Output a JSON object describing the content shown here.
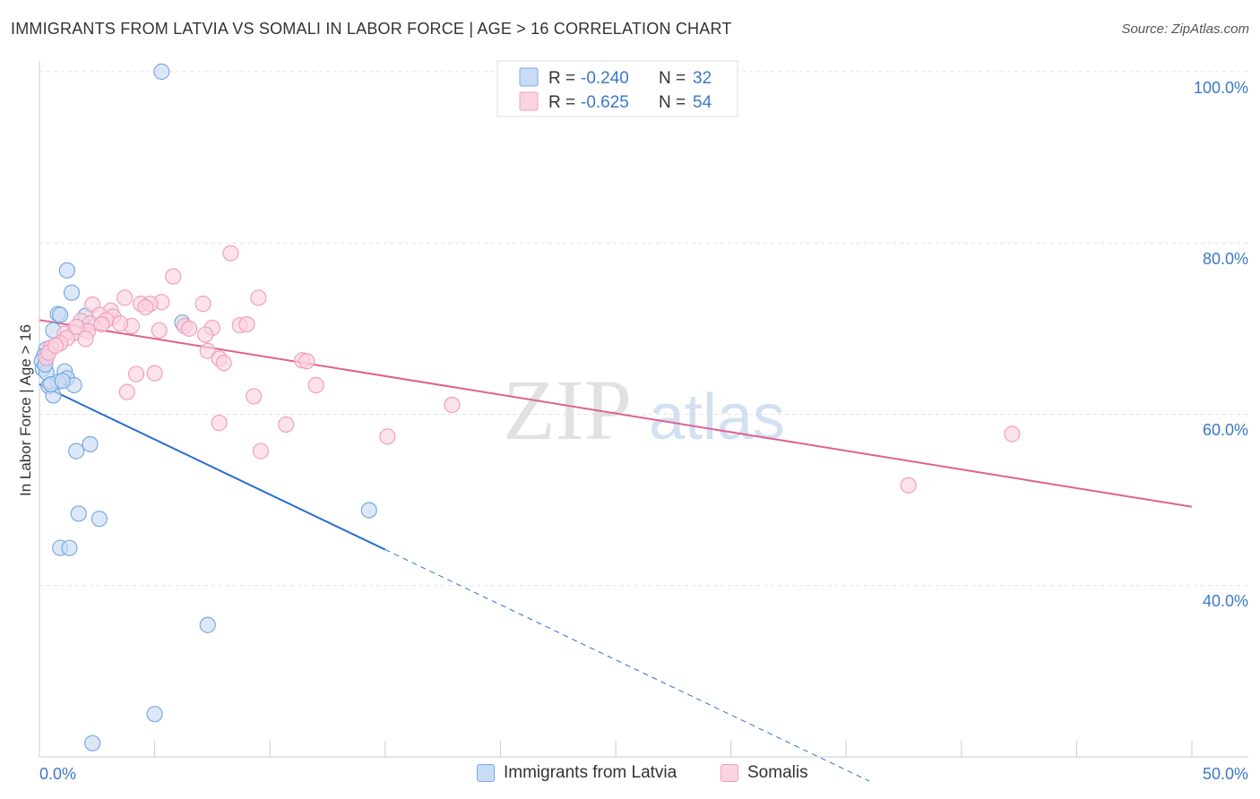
{
  "title": "IMMIGRANTS FROM LATVIA VS SOMALI IN LABOR FORCE | AGE > 16 CORRELATION CHART",
  "source": "Source: ZipAtlas.com",
  "watermark": {
    "zip": "ZIP",
    "atlas": "atlas"
  },
  "legend": {
    "r_label": "R = ",
    "n_label": "N = ",
    "rows": [
      {
        "r": "-0.240",
        "n": "32"
      },
      {
        "r": "-0.625",
        "n": "54"
      }
    ]
  },
  "chart_data": {
    "type": "scatter",
    "xlabel": "",
    "ylabel": "In Labor Force | Age > 16",
    "xlim": [
      0,
      50
    ],
    "ylim": [
      20,
      100
    ],
    "x_tick_labels": [
      "0.0%",
      "50.0%"
    ],
    "y_tick_labels": [
      "100.0%",
      "80.0%",
      "60.0%",
      "40.0%"
    ],
    "y_ticks": [
      100,
      80,
      60,
      40
    ],
    "grid": true,
    "legend_position": "top-center",
    "series": [
      {
        "name": "Immigrants from Latvia",
        "color": "#7aaae0",
        "fill": "#c9dcf5",
        "line_color": "#2a6fd0",
        "r": -0.24,
        "n": 32,
        "trend": {
          "x0": 0,
          "y0": 63.5,
          "x1": 15,
          "y1": 44.2,
          "dash_to_x": 36
        },
        "points": [
          [
            5.3,
            100.0
          ],
          [
            1.2,
            76.8
          ],
          [
            1.4,
            74.2
          ],
          [
            0.8,
            71.7
          ],
          [
            0.9,
            71.6
          ],
          [
            2.0,
            71.5
          ],
          [
            6.2,
            70.7
          ],
          [
            0.6,
            69.8
          ],
          [
            0.3,
            67.6
          ],
          [
            0.2,
            66.8
          ],
          [
            0.1,
            66.2
          ],
          [
            0.15,
            65.3
          ],
          [
            0.3,
            64.9
          ],
          [
            1.1,
            65.0
          ],
          [
            1.2,
            64.2
          ],
          [
            0.8,
            63.8
          ],
          [
            0.4,
            63.3
          ],
          [
            1.5,
            63.4
          ],
          [
            0.6,
            62.2
          ],
          [
            0.5,
            63.5
          ],
          [
            2.2,
            56.5
          ],
          [
            1.6,
            55.7
          ],
          [
            1.7,
            48.4
          ],
          [
            2.6,
            47.8
          ],
          [
            14.3,
            48.8
          ],
          [
            0.9,
            44.4
          ],
          [
            1.3,
            44.4
          ],
          [
            7.3,
            35.4
          ],
          [
            5.0,
            25.0
          ],
          [
            2.3,
            21.6
          ],
          [
            0.25,
            65.8
          ],
          [
            1.0,
            63.9
          ]
        ]
      },
      {
        "name": "Somalis",
        "color": "#f0a0bc",
        "fill": "#fbd3e1",
        "line_color": "#e06090",
        "r": -0.625,
        "n": 54,
        "trend": {
          "x0": 0,
          "y0": 71.0,
          "x1": 50,
          "y1": 49.2
        },
        "points": [
          [
            8.3,
            78.8
          ],
          [
            5.8,
            76.1
          ],
          [
            3.7,
            73.6
          ],
          [
            9.5,
            73.6
          ],
          [
            5.3,
            73.1
          ],
          [
            4.4,
            72.9
          ],
          [
            4.8,
            72.9
          ],
          [
            7.1,
            72.9
          ],
          [
            2.3,
            72.8
          ],
          [
            3.1,
            72.1
          ],
          [
            2.6,
            71.6
          ],
          [
            3.2,
            71.4
          ],
          [
            2.9,
            71.0
          ],
          [
            1.8,
            70.9
          ],
          [
            2.2,
            70.6
          ],
          [
            2.7,
            70.5
          ],
          [
            4.0,
            70.3
          ],
          [
            6.3,
            70.3
          ],
          [
            7.5,
            70.1
          ],
          [
            8.7,
            70.4
          ],
          [
            9.0,
            70.5
          ],
          [
            5.2,
            69.8
          ],
          [
            2.1,
            69.7
          ],
          [
            1.5,
            69.5
          ],
          [
            1.1,
            69.4
          ],
          [
            7.2,
            69.3
          ],
          [
            1.2,
            68.9
          ],
          [
            2.0,
            68.8
          ],
          [
            0.9,
            68.3
          ],
          [
            0.5,
            67.8
          ],
          [
            7.3,
            67.4
          ],
          [
            7.8,
            66.5
          ],
          [
            8.0,
            66.0
          ],
          [
            11.4,
            66.3
          ],
          [
            11.6,
            66.2
          ],
          [
            0.3,
            66.6
          ],
          [
            4.2,
            64.7
          ],
          [
            5.0,
            64.8
          ],
          [
            3.8,
            62.6
          ],
          [
            12.0,
            63.4
          ],
          [
            9.3,
            62.1
          ],
          [
            17.9,
            61.1
          ],
          [
            7.8,
            59.0
          ],
          [
            10.7,
            58.8
          ],
          [
            15.1,
            57.4
          ],
          [
            42.2,
            57.7
          ],
          [
            9.6,
            55.7
          ],
          [
            37.7,
            51.7
          ],
          [
            0.4,
            67.2
          ],
          [
            0.7,
            68.0
          ],
          [
            1.6,
            70.2
          ],
          [
            3.5,
            70.6
          ],
          [
            6.5,
            70.0
          ],
          [
            4.6,
            72.5
          ]
        ]
      }
    ]
  }
}
